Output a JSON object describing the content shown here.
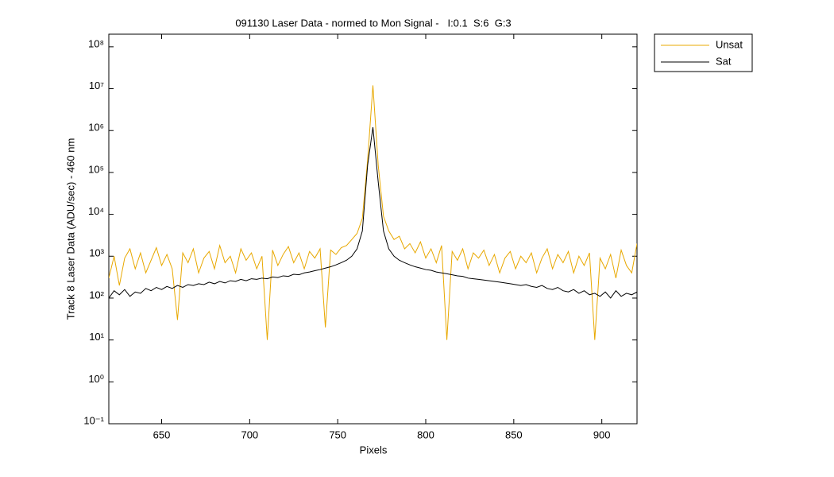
{
  "chart_data": {
    "type": "line",
    "title": "091130 Laser Data - normed to Mon Signal -   I:0.1  S:6  G:3",
    "x_label": "Pixels",
    "y_label": "Track 8 Laser Data (ADU/sec) - 460 nm",
    "xlim": [
      620,
      920
    ],
    "xticks": [
      650,
      700,
      750,
      800,
      850,
      900
    ],
    "ylim": [
      0.1,
      200000000
    ],
    "log_y": true,
    "yticks": [
      {
        "value": 0.1,
        "label": "10⁻¹"
      },
      {
        "value": 1,
        "label": "10⁰"
      },
      {
        "value": 10,
        "label": "10¹"
      },
      {
        "value": 100,
        "label": "10²"
      },
      {
        "value": 1000,
        "label": "10³"
      },
      {
        "value": 10000,
        "label": "10⁴"
      },
      {
        "value": 100000,
        "label": "10⁵"
      },
      {
        "value": 1000000,
        "label": "10⁶"
      },
      {
        "value": 10000000,
        "label": "10⁷"
      },
      {
        "value": 100000000,
        "label": "10⁸"
      }
    ],
    "grid": false,
    "legend": "outside-northeast",
    "x": [
      620,
      623,
      626,
      629,
      632,
      635,
      638,
      641,
      644,
      647,
      650,
      653,
      656,
      659,
      662,
      665,
      668,
      671,
      674,
      677,
      680,
      683,
      686,
      689,
      692,
      695,
      698,
      701,
      704,
      707,
      710,
      713,
      716,
      719,
      722,
      725,
      728,
      731,
      734,
      737,
      740,
      743,
      746,
      749,
      752,
      755,
      758,
      761,
      764,
      767,
      770,
      773,
      776,
      779,
      782,
      785,
      788,
      791,
      794,
      797,
      800,
      803,
      806,
      809,
      812,
      815,
      818,
      821,
      824,
      827,
      830,
      833,
      836,
      839,
      842,
      845,
      848,
      851,
      854,
      857,
      860,
      863,
      866,
      869,
      872,
      875,
      878,
      881,
      884,
      887,
      890,
      893,
      896,
      899,
      902,
      905,
      908,
      911,
      914,
      917,
      920
    ],
    "series": [
      {
        "name": "Unsat",
        "color": "#e8a800",
        "values": [
          300,
          1000,
          200,
          900,
          1500,
          500,
          1200,
          400,
          800,
          1600,
          600,
          1100,
          500,
          30,
          1200,
          700,
          1500,
          400,
          900,
          1300,
          500,
          1800,
          700,
          1000,
          400,
          1500,
          800,
          1200,
          500,
          1000,
          10,
          1400,
          600,
          1100,
          1700,
          700,
          1200,
          500,
          1300,
          900,
          1500,
          20,
          1400,
          1100,
          1600,
          1800,
          2500,
          3500,
          8000,
          200000,
          12000000,
          150000,
          9000,
          4000,
          2500,
          3000,
          1500,
          2000,
          1200,
          2200,
          900,
          1500,
          700,
          1800,
          10,
          1300,
          800,
          1500,
          500,
          1200,
          900,
          1400,
          600,
          1100,
          400,
          900,
          1300,
          500,
          1000,
          700,
          1200,
          400,
          900,
          1500,
          500,
          1100,
          700,
          1300,
          400,
          1000,
          600,
          1200,
          10,
          900,
          500,
          1100,
          300,
          1400,
          600,
          400,
          2000
        ]
      },
      {
        "name": "Sat",
        "color": "#000000",
        "values": [
          100,
          150,
          120,
          160,
          110,
          140,
          130,
          170,
          150,
          180,
          160,
          190,
          170,
          200,
          180,
          210,
          200,
          220,
          210,
          240,
          220,
          250,
          230,
          260,
          250,
          280,
          260,
          290,
          280,
          300,
          290,
          320,
          310,
          340,
          330,
          370,
          360,
          400,
          420,
          450,
          480,
          520,
          560,
          620,
          700,
          800,
          1000,
          1500,
          4000,
          150000,
          1200000,
          60000,
          4000,
          1500,
          1000,
          800,
          700,
          620,
          560,
          520,
          480,
          460,
          420,
          400,
          380,
          360,
          340,
          330,
          300,
          290,
          280,
          270,
          260,
          250,
          240,
          230,
          220,
          210,
          200,
          210,
          190,
          180,
          200,
          170,
          160,
          180,
          150,
          140,
          160,
          130,
          150,
          120,
          130,
          110,
          140,
          100,
          150,
          110,
          130,
          120,
          140
        ]
      }
    ]
  }
}
